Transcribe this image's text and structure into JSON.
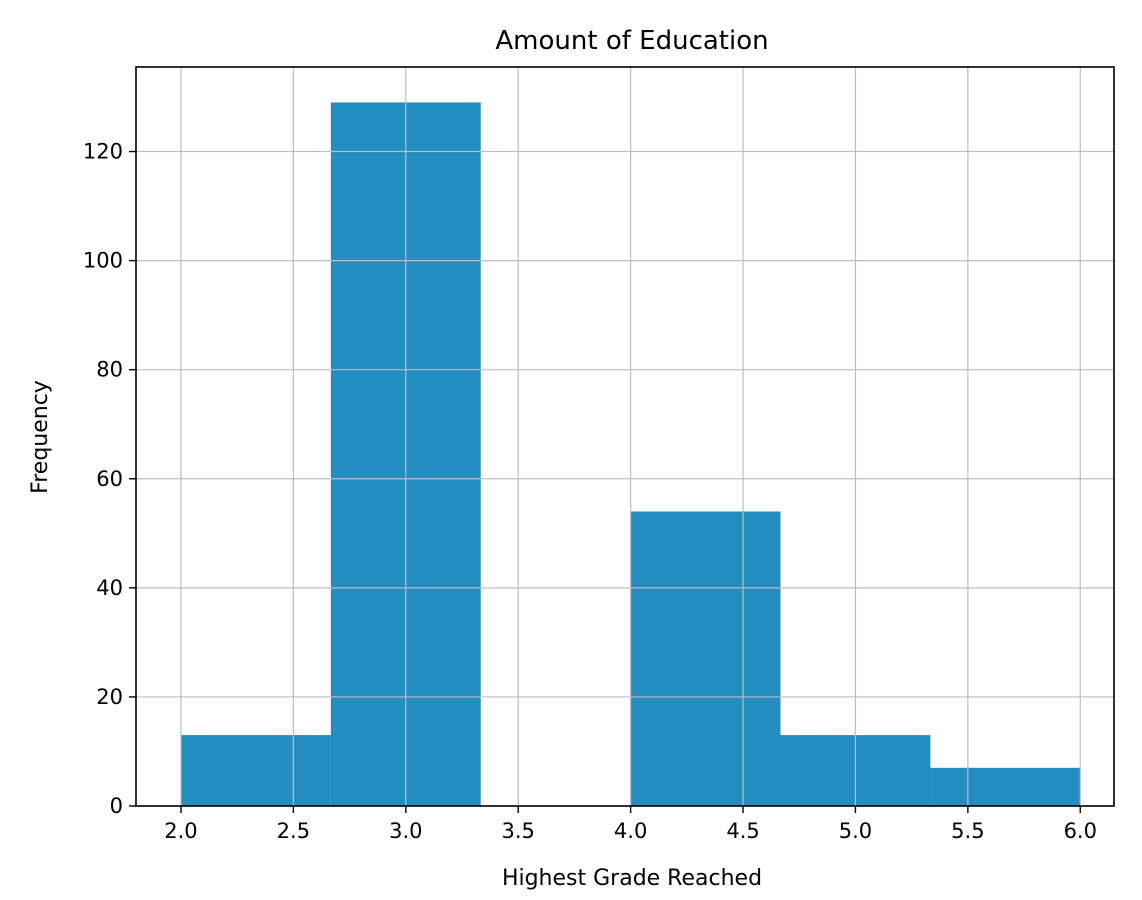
{
  "chart_data": {
    "type": "bar",
    "subtype": "histogram",
    "title": "Amount of Education",
    "xlabel": "Highest Grade Reached",
    "ylabel": "Frequency",
    "bins": [
      {
        "x0": 2.0,
        "x1": 2.6667,
        "count": 13
      },
      {
        "x0": 2.6667,
        "x1": 3.3333,
        "count": 129
      },
      {
        "x0": 3.3333,
        "x1": 4.0,
        "count": 0
      },
      {
        "x0": 4.0,
        "x1": 4.6667,
        "count": 54
      },
      {
        "x0": 4.6667,
        "x1": 5.3333,
        "count": 13
      },
      {
        "x0": 5.3333,
        "x1": 6.0,
        "count": 7
      }
    ],
    "xlim": [
      1.8,
      6.15
    ],
    "ylim": [
      0,
      135.5
    ],
    "xticks": [
      "2.0",
      "2.5",
      "3.0",
      "3.5",
      "4.0",
      "4.5",
      "5.0",
      "5.5",
      "6.0"
    ],
    "yticks": [
      "0",
      "20",
      "40",
      "60",
      "80",
      "100",
      "120"
    ],
    "grid": true,
    "bar_color": "#228dc0",
    "grid_color": "#bebebe"
  }
}
